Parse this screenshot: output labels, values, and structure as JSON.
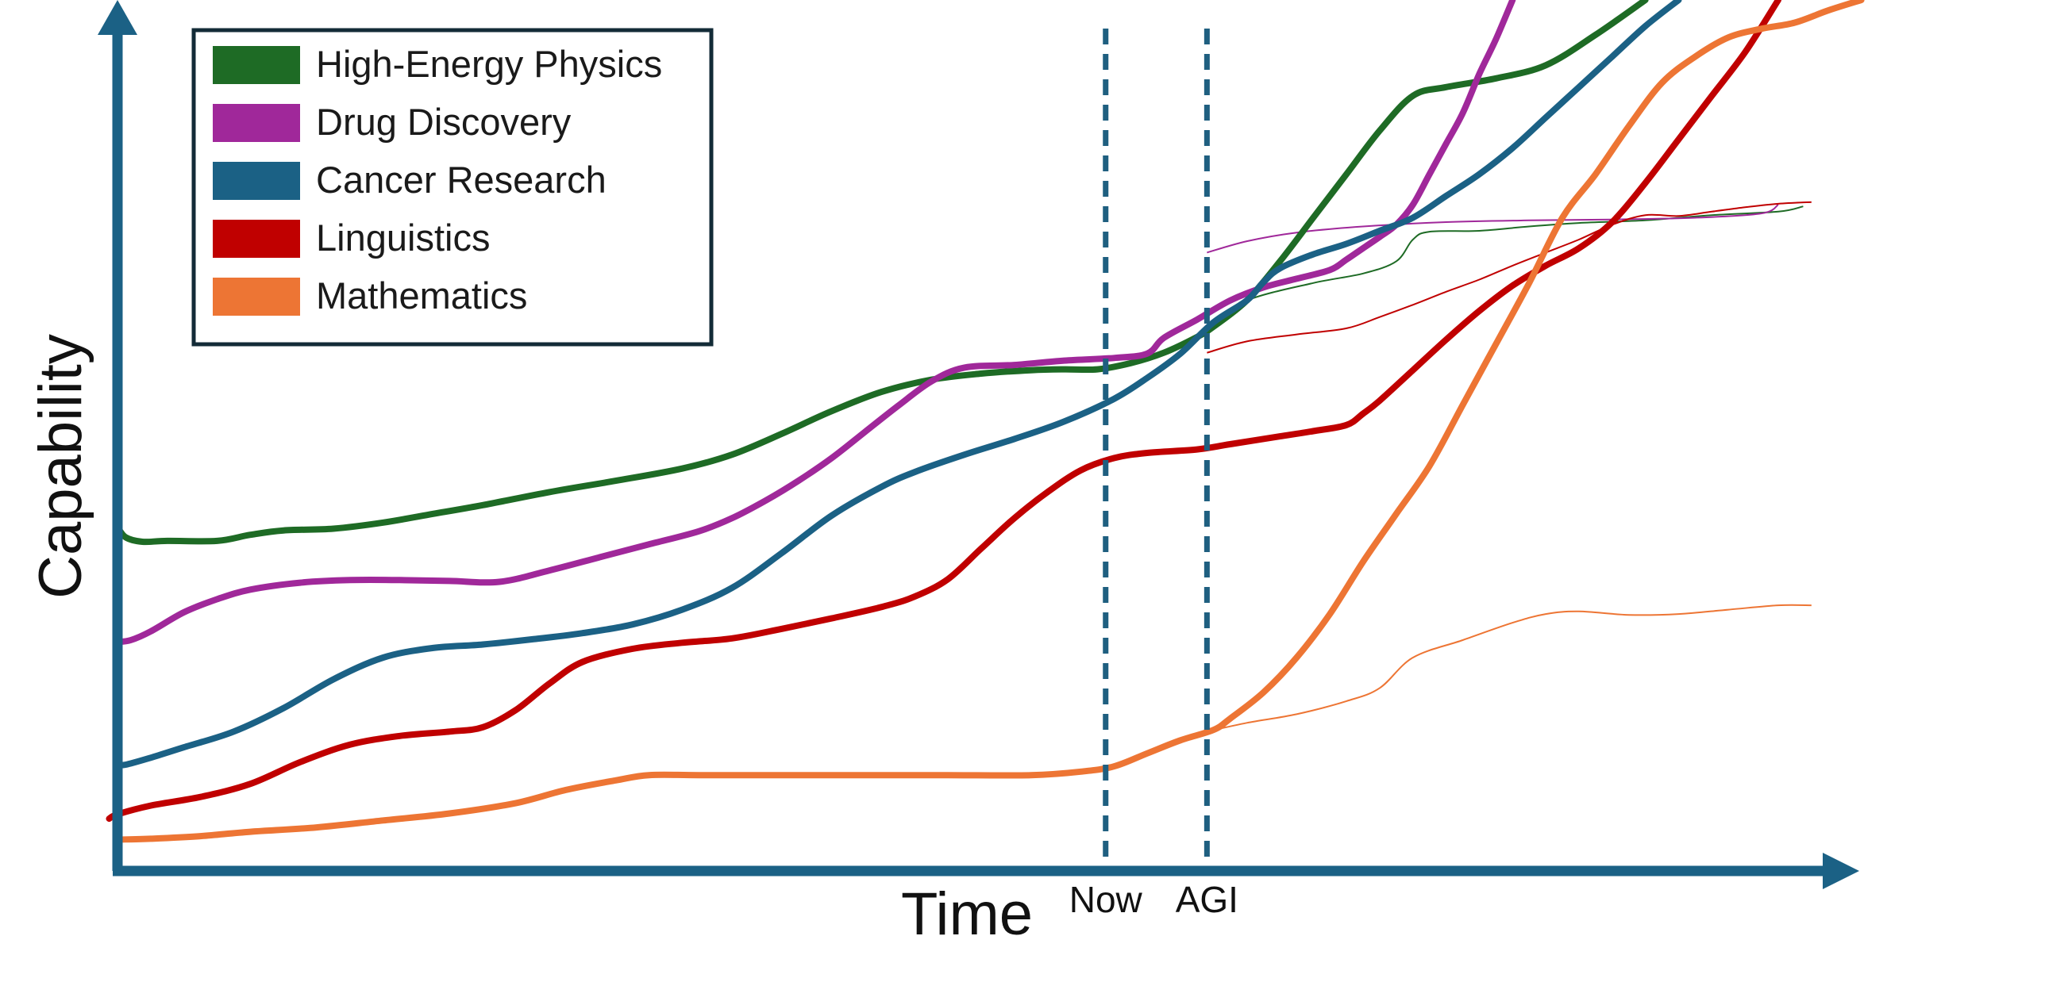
{
  "chart_data": {
    "type": "line",
    "title": "",
    "xlabel": "Time",
    "ylabel": "Capability",
    "xlim": [
      0,
      100
    ],
    "ylim": [
      0,
      100
    ],
    "grid": false,
    "legend_position": "top-left",
    "markers": [
      {
        "label": "Now",
        "x": 59.5,
        "color": "#1f5f80"
      },
      {
        "label": "AGI",
        "x": 65.6,
        "color": "#1f5f80"
      }
    ],
    "series": [
      {
        "name": "High-Energy Physics",
        "color": "#1e6b25",
        "values": [
          [
            0,
            39.5
          ],
          [
            0.5,
            38.3
          ],
          [
            1.5,
            37.8
          ],
          [
            3,
            37.9
          ],
          [
            6,
            37.9
          ],
          [
            8,
            38.6
          ],
          [
            10,
            39.1
          ],
          [
            13,
            39.3
          ],
          [
            16,
            40.0
          ],
          [
            19,
            41.0
          ],
          [
            22,
            42.0
          ],
          [
            26,
            43.5
          ],
          [
            30,
            44.8
          ],
          [
            34,
            46.2
          ],
          [
            37,
            47.8
          ],
          [
            40,
            50.2
          ],
          [
            43,
            52.8
          ],
          [
            46,
            55.0
          ],
          [
            49,
            56.4
          ],
          [
            52,
            57.1
          ],
          [
            55,
            57.5
          ],
          [
            57,
            57.6
          ],
          [
            59,
            57.6
          ],
          [
            61,
            58.3
          ],
          [
            63,
            59.5
          ],
          [
            65,
            61.3
          ],
          [
            66,
            62.5
          ],
          [
            68,
            65.5
          ],
          [
            70,
            70.0
          ],
          [
            72,
            75.0
          ],
          [
            74,
            80.0
          ],
          [
            76,
            85.0
          ],
          [
            78,
            89.0
          ],
          [
            80,
            90.0
          ],
          [
            83,
            91.0
          ],
          [
            86,
            92.5
          ],
          [
            89,
            96.0
          ],
          [
            92,
            100.0
          ]
        ],
        "projection": [
          [
            65.6,
            62.5
          ],
          [
            68,
            65.5
          ],
          [
            72,
            67.5
          ],
          [
            75,
            68.6
          ],
          [
            77,
            70.0
          ],
          [
            78,
            72.5
          ],
          [
            79,
            73.4
          ],
          [
            82,
            73.5
          ],
          [
            85,
            74.0
          ],
          [
            88,
            74.4
          ],
          [
            92,
            74.7
          ],
          [
            96,
            75.3
          ],
          [
            100,
            75.7
          ],
          [
            101.5,
            76.3
          ]
        ]
      },
      {
        "name": "Drug Discovery",
        "color": "#a0289a",
        "values": [
          [
            0,
            26.3
          ],
          [
            0.8,
            26.5
          ],
          [
            2,
            27.5
          ],
          [
            4,
            29.7
          ],
          [
            6,
            31.2
          ],
          [
            8,
            32.3
          ],
          [
            11,
            33.1
          ],
          [
            14,
            33.4
          ],
          [
            17,
            33.4
          ],
          [
            20,
            33.3
          ],
          [
            23,
            33.2
          ],
          [
            26,
            34.5
          ],
          [
            29,
            36.0
          ],
          [
            32,
            37.5
          ],
          [
            35,
            39.0
          ],
          [
            37,
            40.5
          ],
          [
            39,
            42.5
          ],
          [
            41,
            44.8
          ],
          [
            43,
            47.4
          ],
          [
            45,
            50.4
          ],
          [
            47,
            53.4
          ],
          [
            49,
            56.2
          ],
          [
            51,
            57.8
          ],
          [
            54,
            58.1
          ],
          [
            57,
            58.6
          ],
          [
            60,
            58.9
          ],
          [
            62,
            59.4
          ],
          [
            63,
            61.2
          ],
          [
            65,
            63.3
          ],
          [
            67,
            65.5
          ],
          [
            69,
            67.0
          ],
          [
            71,
            68.0
          ],
          [
            73,
            69.0
          ],
          [
            74,
            70.2
          ],
          [
            75,
            71.5
          ],
          [
            76,
            72.8
          ],
          [
            77,
            74.2
          ],
          [
            78,
            76.5
          ],
          [
            79,
            80.0
          ],
          [
            80,
            83.5
          ],
          [
            81,
            87.0
          ],
          [
            82,
            91.5
          ],
          [
            83,
            95.5
          ],
          [
            84,
            100.0
          ]
        ],
        "projection": [
          [
            65.6,
            71.0
          ],
          [
            68,
            72.3
          ],
          [
            71,
            73.3
          ],
          [
            75,
            74.0
          ],
          [
            80,
            74.5
          ],
          [
            85,
            74.7
          ],
          [
            90,
            74.8
          ],
          [
            95,
            75.0
          ],
          [
            99,
            75.5
          ],
          [
            100,
            76.5
          ]
        ]
      },
      {
        "name": "Cancer Research",
        "color": "#1b6185",
        "values": [
          [
            0,
            12.2
          ],
          [
            0.5,
            12.2
          ],
          [
            2,
            13.0
          ],
          [
            4,
            14.2
          ],
          [
            7,
            16.0
          ],
          [
            10,
            18.7
          ],
          [
            13,
            22.0
          ],
          [
            16,
            24.5
          ],
          [
            19,
            25.6
          ],
          [
            22,
            26.0
          ],
          [
            25,
            26.6
          ],
          [
            28,
            27.3
          ],
          [
            31,
            28.3
          ],
          [
            34,
            30.0
          ],
          [
            37,
            32.5
          ],
          [
            40,
            36.5
          ],
          [
            43,
            40.8
          ],
          [
            46,
            44.1
          ],
          [
            48,
            45.8
          ],
          [
            51,
            47.8
          ],
          [
            54,
            49.6
          ],
          [
            57,
            51.6
          ],
          [
            60,
            54.2
          ],
          [
            62,
            56.6
          ],
          [
            64,
            59.4
          ],
          [
            66,
            63.0
          ],
          [
            68,
            65.5
          ],
          [
            69,
            67.6
          ],
          [
            70,
            69.2
          ],
          [
            72,
            70.8
          ],
          [
            74,
            72.0
          ],
          [
            76,
            73.5
          ],
          [
            78,
            75.0
          ],
          [
            80,
            77.5
          ],
          [
            82,
            80.0
          ],
          [
            84,
            83.0
          ],
          [
            86,
            86.5
          ],
          [
            88,
            90.0
          ],
          [
            90,
            93.5
          ],
          [
            92,
            97.0
          ],
          [
            94,
            100.0
          ]
        ],
        "projection": []
      },
      {
        "name": "Linguistics",
        "color": "#c00000",
        "values": [
          [
            -0.5,
            6.0
          ],
          [
            0,
            6.5
          ],
          [
            2,
            7.5
          ],
          [
            5,
            8.5
          ],
          [
            8,
            10.0
          ],
          [
            11,
            12.5
          ],
          [
            14,
            14.5
          ],
          [
            17,
            15.5
          ],
          [
            20,
            16.0
          ],
          [
            22,
            16.5
          ],
          [
            24,
            18.5
          ],
          [
            26,
            21.5
          ],
          [
            28,
            24.0
          ],
          [
            31,
            25.5
          ],
          [
            34,
            26.2
          ],
          [
            37,
            26.7
          ],
          [
            40,
            27.8
          ],
          [
            43,
            29.0
          ],
          [
            46,
            30.3
          ],
          [
            48,
            31.5
          ],
          [
            50,
            33.5
          ],
          [
            52,
            37.0
          ],
          [
            54,
            40.5
          ],
          [
            56,
            43.5
          ],
          [
            58,
            46.0
          ],
          [
            60,
            47.4
          ],
          [
            62,
            48.0
          ],
          [
            65,
            48.4
          ],
          [
            67,
            49.0
          ],
          [
            70,
            49.9
          ],
          [
            72,
            50.5
          ],
          [
            74,
            51.2
          ],
          [
            75,
            52.5
          ],
          [
            76,
            54.0
          ],
          [
            78,
            57.5
          ],
          [
            80,
            61.0
          ],
          [
            82,
            64.3
          ],
          [
            84,
            67.2
          ],
          [
            86,
            69.5
          ],
          [
            88,
            71.5
          ],
          [
            90,
            74.5
          ],
          [
            92,
            79.0
          ],
          [
            94,
            84.0
          ],
          [
            96,
            89.0
          ],
          [
            98,
            94.0
          ],
          [
            100,
            100.0
          ]
        ],
        "projection": [
          [
            65.6,
            59.5
          ],
          [
            68,
            60.8
          ],
          [
            71,
            61.6
          ],
          [
            74,
            62.3
          ],
          [
            76,
            63.6
          ],
          [
            78,
            65.0
          ],
          [
            80,
            66.5
          ],
          [
            82,
            67.9
          ],
          [
            84,
            69.5
          ],
          [
            86,
            71.0
          ],
          [
            88,
            72.5
          ],
          [
            90,
            74.2
          ],
          [
            92,
            75.3
          ],
          [
            94,
            75.2
          ],
          [
            96,
            75.7
          ],
          [
            98,
            76.2
          ],
          [
            100,
            76.6
          ],
          [
            102,
            76.8
          ]
        ]
      },
      {
        "name": "Mathematics",
        "color": "#ed7534",
        "values": [
          [
            0,
            3.6
          ],
          [
            2,
            3.7
          ],
          [
            5,
            4.0
          ],
          [
            8,
            4.5
          ],
          [
            12,
            5.0
          ],
          [
            16,
            5.8
          ],
          [
            20,
            6.6
          ],
          [
            24,
            7.8
          ],
          [
            27,
            9.3
          ],
          [
            30,
            10.4
          ],
          [
            32,
            11.0
          ],
          [
            35,
            11.0
          ],
          [
            40,
            11.0
          ],
          [
            45,
            11.0
          ],
          [
            50,
            11.0
          ],
          [
            55,
            11.0
          ],
          [
            58,
            11.4
          ],
          [
            60,
            12.0
          ],
          [
            62,
            13.5
          ],
          [
            64,
            15.0
          ],
          [
            66,
            16.2
          ],
          [
            67,
            17.5
          ],
          [
            69,
            20.5
          ],
          [
            71,
            24.5
          ],
          [
            73,
            29.5
          ],
          [
            75,
            35.5
          ],
          [
            77,
            41.0
          ],
          [
            79,
            46.5
          ],
          [
            81,
            53.5
          ],
          [
            83,
            60.5
          ],
          [
            85,
            67.5
          ],
          [
            87,
            75.0
          ],
          [
            89,
            80.0
          ],
          [
            91,
            85.5
          ],
          [
            93,
            90.5
          ],
          [
            95,
            93.5
          ],
          [
            97,
            95.7
          ],
          [
            99,
            96.7
          ],
          [
            101,
            97.4
          ],
          [
            103,
            98.8
          ],
          [
            105,
            100.0
          ]
        ],
        "projection": [
          [
            65.6,
            16.0
          ],
          [
            68,
            17.0
          ],
          [
            71,
            18.0
          ],
          [
            74,
            19.5
          ],
          [
            76,
            21.0
          ],
          [
            78,
            24.5
          ],
          [
            81,
            26.5
          ],
          [
            84,
            28.5
          ],
          [
            86,
            29.5
          ],
          [
            88,
            29.8
          ],
          [
            91,
            29.4
          ],
          [
            94,
            29.5
          ],
          [
            97,
            30.0
          ],
          [
            100,
            30.5
          ],
          [
            102,
            30.5
          ]
        ]
      }
    ]
  }
}
